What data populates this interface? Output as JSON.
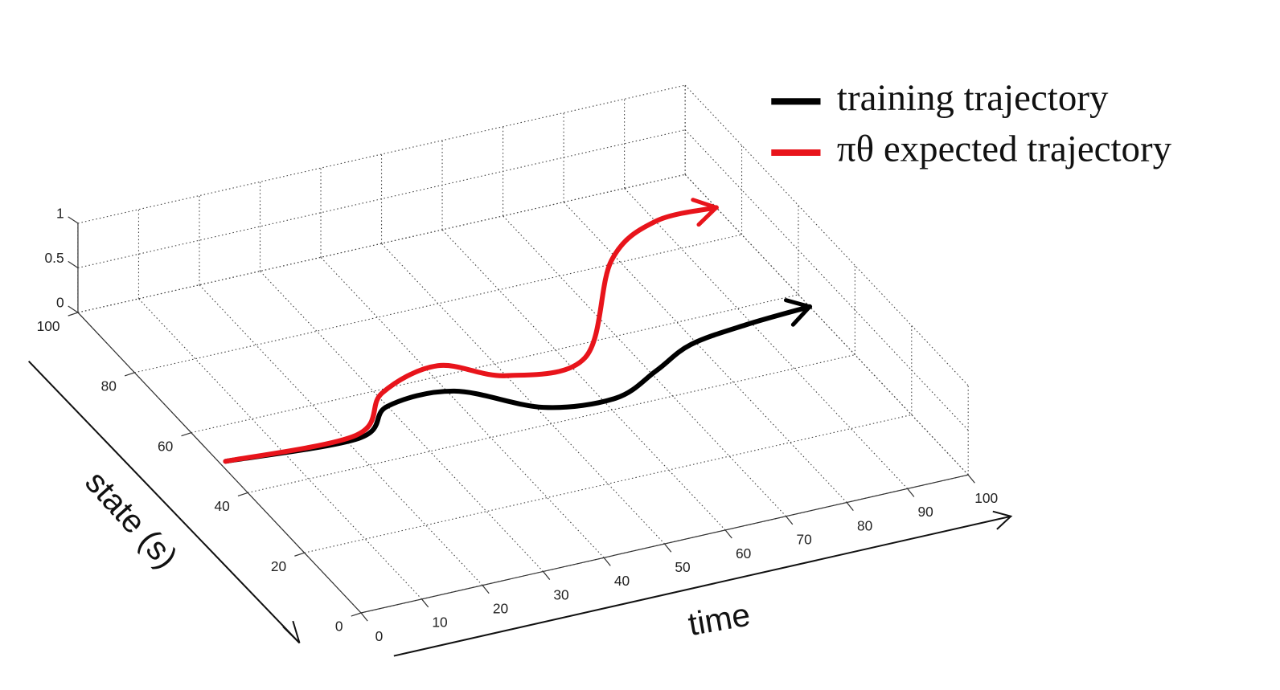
{
  "chart_data": {
    "type": "line3d",
    "xlabel": "time",
    "ylabel": "state (s)",
    "xlim": [
      0,
      100
    ],
    "xticks": [
      0,
      10,
      20,
      30,
      40,
      50,
      60,
      70,
      80,
      90,
      100
    ],
    "ylim": [
      0,
      100
    ],
    "yticks": [
      0,
      20,
      40,
      60,
      80,
      100
    ],
    "zlim": [
      0,
      1
    ],
    "zticks": [
      0,
      0.5,
      1
    ],
    "grid": true,
    "legend": "upper right",
    "series": [
      {
        "name": "training trajectory",
        "color": "#000000",
        "x": [
          1,
          22,
          30,
          41,
          51,
          62,
          71,
          79,
          89,
          100
        ],
        "values": [
          50,
          48,
          55,
          55,
          45,
          43,
          48,
          53,
          55,
          56
        ]
      },
      {
        "name": "πθ expected trajectory",
        "color": "#e8141b",
        "x": [
          1,
          22,
          31,
          42,
          50,
          63,
          79,
          90,
          100
        ],
        "values": [
          50,
          49,
          59,
          63,
          56,
          56,
          81,
          89,
          89
        ]
      }
    ]
  }
}
